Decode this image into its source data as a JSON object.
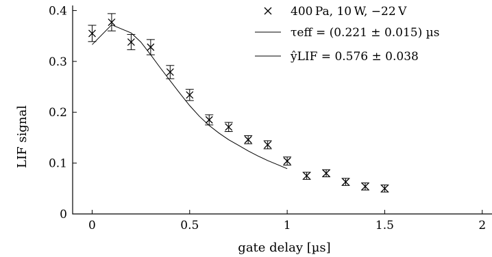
{
  "chart_data": {
    "type": "scatter",
    "xlabel": "gate delay [µs]",
    "ylabel": "LIF signal",
    "xlim": [
      -0.1,
      2.05
    ],
    "ylim": [
      0,
      0.41
    ],
    "xticks": [
      {
        "value": 0,
        "label": "0"
      },
      {
        "value": 0.5,
        "label": "0.5"
      },
      {
        "value": 1,
        "label": "1"
      },
      {
        "value": 1.5,
        "label": "1.5"
      },
      {
        "value": 2,
        "label": "2"
      }
    ],
    "yticks": [
      {
        "value": 0,
        "label": "0"
      },
      {
        "value": 0.1,
        "label": "0.1"
      },
      {
        "value": 0.2,
        "label": "0.2"
      },
      {
        "value": 0.3,
        "label": "0.3"
      },
      {
        "value": 0.4,
        "label": "0.4"
      }
    ],
    "grid": false,
    "legend_position": "top-right",
    "legend": [
      {
        "marker": "x",
        "label": "400 Pa, 10 W, −22 V"
      },
      {
        "marker": "line",
        "label": "τeff = (0.221 ± 0.015) µs"
      },
      {
        "marker": "line",
        "label": "ŷLIF = 0.576 ± 0.038"
      }
    ],
    "series": [
      {
        "name": "400 Pa, 10 W, −22 V",
        "type": "scatter",
        "marker": "x",
        "x": [
          0,
          0.1,
          0.2,
          0.3,
          0.4,
          0.5,
          0.6,
          0.7,
          0.8,
          0.9,
          1.0,
          1.1,
          1.2,
          1.3,
          1.4,
          1.5
        ],
        "y": [
          0.355,
          0.377,
          0.338,
          0.328,
          0.279,
          0.234,
          0.185,
          0.171,
          0.146,
          0.136,
          0.104,
          0.075,
          0.08,
          0.063,
          0.054,
          0.05
        ],
        "yerr": [
          0.016,
          0.017,
          0.015,
          0.015,
          0.013,
          0.011,
          0.01,
          0.009,
          0.008,
          0.008,
          0.008,
          0.007,
          0.007,
          0.007,
          0.007,
          0.007
        ]
      },
      {
        "name": "fit",
        "type": "line",
        "x": [
          0.0,
          0.1,
          0.2,
          0.25,
          0.3,
          0.35,
          0.4,
          0.45,
          0.5,
          0.55,
          0.6,
          0.65,
          0.7,
          0.75,
          0.8,
          0.85,
          0.9,
          0.95,
          1.0
        ],
        "y": [
          0.333,
          0.372,
          0.356,
          0.338,
          0.313,
          0.287,
          0.262,
          0.237,
          0.213,
          0.192,
          0.174,
          0.159,
          0.146,
          0.135,
          0.124,
          0.114,
          0.105,
          0.097,
          0.089
        ]
      }
    ]
  }
}
